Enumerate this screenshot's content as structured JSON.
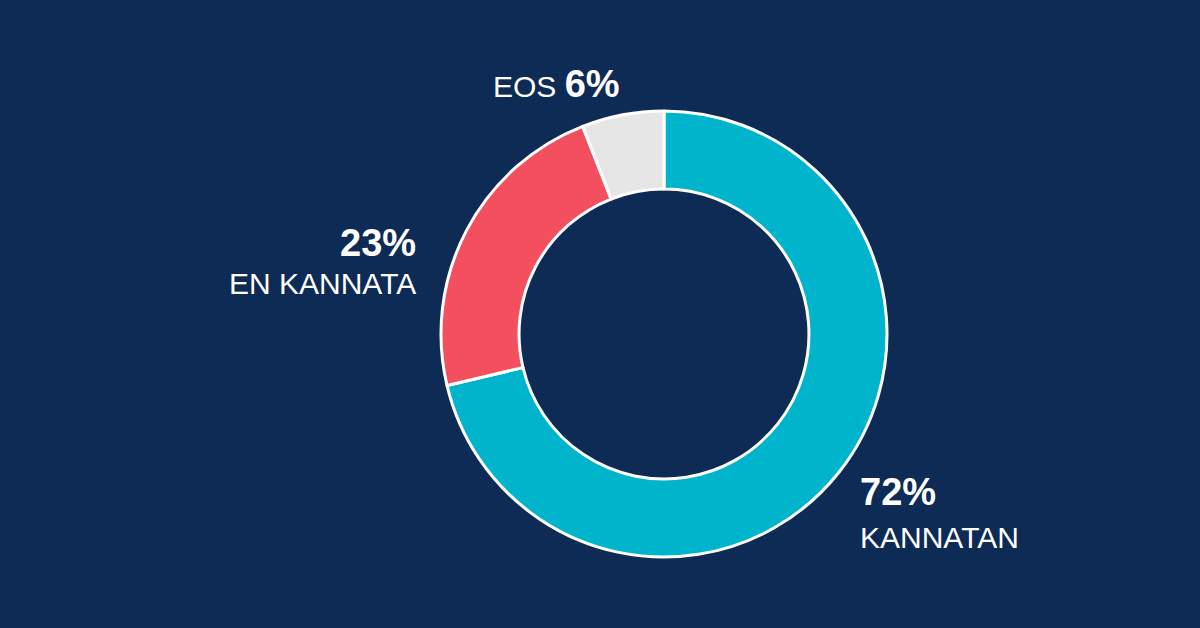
{
  "chart_data": {
    "type": "pie",
    "categories": [
      "KANNATAN",
      "EN KANNATA",
      "EOS"
    ],
    "values": [
      72,
      23,
      6
    ],
    "value_labels": [
      "72%",
      "23%",
      "6%"
    ],
    "colors": [
      "#00b5cb",
      "#f34f5e",
      "#e6e6e6"
    ],
    "data_labels": true
  }
}
